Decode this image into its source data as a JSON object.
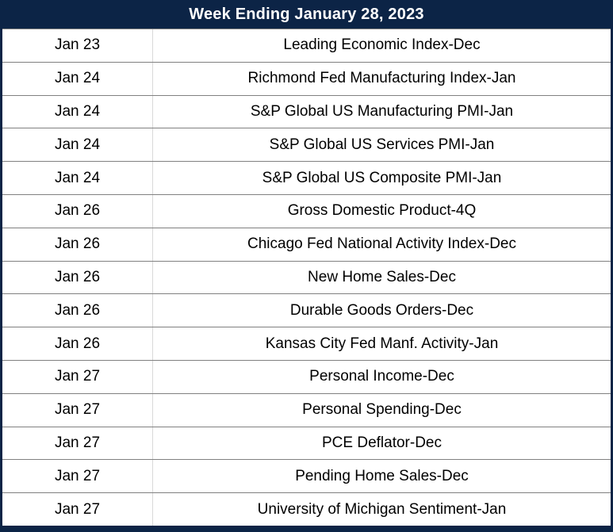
{
  "header": {
    "title": "Week Ending January 28, 2023"
  },
  "table": {
    "columns": [
      "date",
      "event"
    ],
    "rows": [
      {
        "date": "Jan 23",
        "event": "Leading Economic Index-Dec"
      },
      {
        "date": "Jan 24",
        "event": "Richmond Fed Manufacturing Index-Jan"
      },
      {
        "date": "Jan 24",
        "event": "S&P Global US Manufacturing PMI-Jan"
      },
      {
        "date": "Jan 24",
        "event": "S&P Global US Services PMI-Jan"
      },
      {
        "date": "Jan 24",
        "event": "S&P Global US Composite PMI-Jan"
      },
      {
        "date": "Jan 26",
        "event": "Gross Domestic Product-4Q"
      },
      {
        "date": "Jan 26",
        "event": "Chicago Fed National Activity Index-Dec"
      },
      {
        "date": "Jan 26",
        "event": "New Home Sales-Dec"
      },
      {
        "date": "Jan 26",
        "event": "Durable Goods Orders-Dec"
      },
      {
        "date": "Jan 26",
        "event": "Kansas City Fed Manf. Activity-Jan"
      },
      {
        "date": "Jan 27",
        "event": "Personal Income-Dec"
      },
      {
        "date": "Jan 27",
        "event": "Personal Spending-Dec"
      },
      {
        "date": "Jan 27",
        "event": "PCE Deflator-Dec"
      },
      {
        "date": "Jan 27",
        "event": "Pending Home Sales-Dec"
      },
      {
        "date": "Jan 27",
        "event": "University of Michigan Sentiment-Jan"
      }
    ]
  },
  "colors": {
    "header_background": "#0c2446",
    "header_text": "#ffffff",
    "row_separator": "#808080",
    "column_divider": "#d9d9d9",
    "body_text": "#000000"
  }
}
